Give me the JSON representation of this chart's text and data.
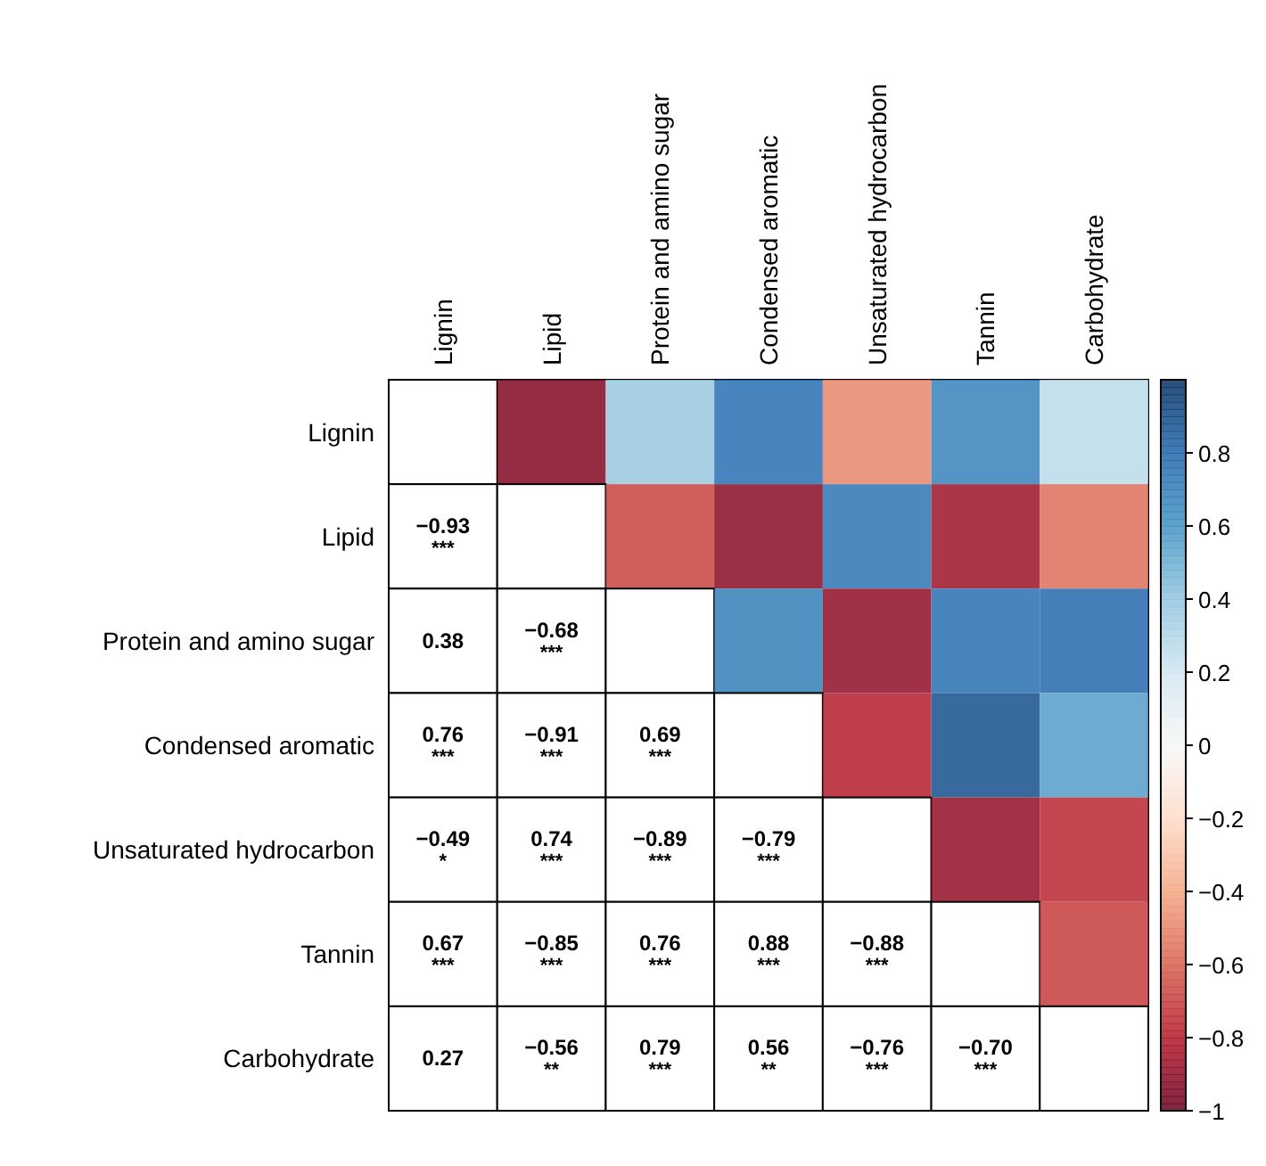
{
  "chart_data": {
    "type": "heatmap",
    "categories": [
      "Lignin",
      "Lipid",
      "Protein and amino sugar",
      "Condensed aromatic",
      "Unsaturated hydrocarbon",
      "Tannin",
      "Carbohydrate"
    ],
    "y_categories": [
      "Lignin",
      "Lipid",
      "Protein and amino sugar",
      "Condensed aromatic",
      "Unsaturated hydrocarbon",
      "Tannin",
      "Carbohydrate"
    ],
    "cells": [
      [
        null,
        -0.93,
        0.38,
        0.76,
        -0.49,
        0.67,
        0.27
      ],
      [
        null,
        null,
        -0.68,
        -0.91,
        0.74,
        -0.85,
        -0.56
      ],
      [
        null,
        null,
        null,
        0.69,
        -0.89,
        0.76,
        0.79
      ],
      [
        null,
        null,
        null,
        null,
        -0.79,
        0.88,
        0.56
      ],
      [
        null,
        null,
        null,
        null,
        null,
        -0.88,
        -0.76
      ],
      [
        null,
        null,
        null,
        null,
        null,
        null,
        -0.7
      ],
      [
        null,
        null,
        null,
        null,
        null,
        null,
        null
      ]
    ],
    "cell_labels": [
      [
        null,
        null,
        null,
        null,
        null,
        null,
        null
      ],
      [
        "−0.93\n***",
        null,
        null,
        null,
        null,
        null,
        null
      ],
      [
        "0.38",
        "−0.68\n***",
        null,
        null,
        null,
        null,
        null
      ],
      [
        "0.76\n***",
        "−0.91\n***",
        "0.69\n***",
        null,
        null,
        null,
        null
      ],
      [
        "−0.49\n*",
        "0.74\n***",
        "−0.89\n***",
        "−0.79\n***",
        null,
        null,
        null
      ],
      [
        "0.67\n***",
        "−0.85\n***",
        "0.76\n***",
        "0.88\n***",
        "−0.88\n***",
        null,
        null
      ],
      [
        "0.27",
        "−0.56\n**",
        "0.79\n***",
        "0.56\n**",
        "−0.76\n***",
        "−0.70\n***",
        null
      ]
    ],
    "clim": [
      -1,
      1
    ],
    "cticks": [
      {
        "value": -1,
        "label": "−1"
      },
      {
        "value": -0.8,
        "label": "−0.8"
      },
      {
        "value": -0.6,
        "label": "−0.6"
      },
      {
        "value": -0.4,
        "label": "−0.4"
      },
      {
        "value": -0.2,
        "label": "−0.2"
      },
      0,
      0.2,
      0.4,
      0.6,
      0.8
    ]
  }
}
